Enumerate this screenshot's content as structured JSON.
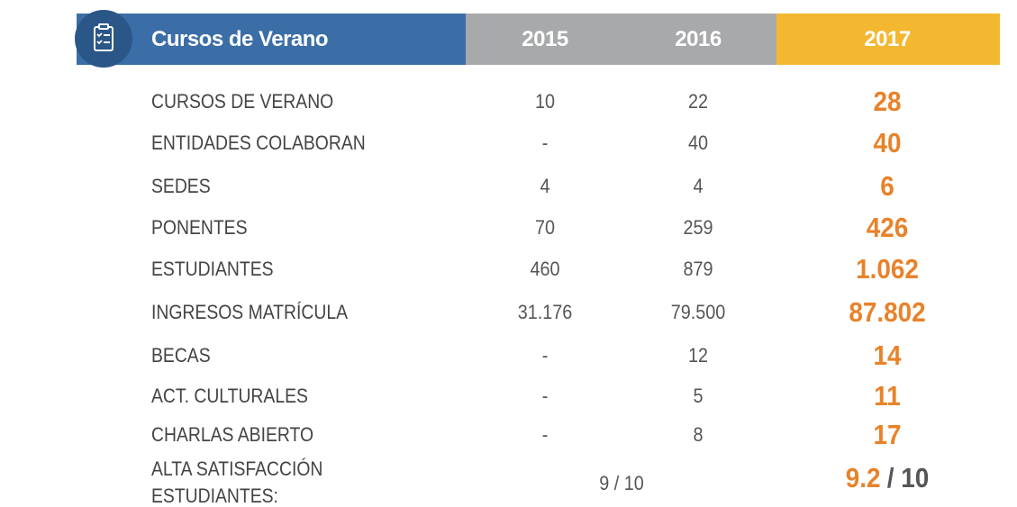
{
  "header": {
    "title": "Cursos de Verano",
    "years": [
      "2015",
      "2016",
      "2017"
    ]
  },
  "table": {
    "rows": [
      [
        "CURSOS DE VERANO",
        "10",
        "22",
        "28"
      ],
      [
        "ENTIDADES COLABORAN",
        "-",
        "40",
        "40"
      ],
      [
        "SEDES",
        "4",
        "4",
        "6"
      ],
      [
        "PONENTES",
        "70",
        "259",
        "426"
      ],
      [
        "ESTUDIANTES",
        "460",
        "879",
        "1.062"
      ],
      [
        "INGRESOS MATRÍCULA",
        "31.176",
        "79.500",
        "87.802"
      ],
      [
        "BECAS",
        "-",
        "12",
        "14"
      ],
      [
        "ACT. CULTURALES",
        "-",
        "5",
        "11"
      ],
      [
        "CHARLAS ABIERTO",
        "-",
        "8",
        "17"
      ]
    ],
    "satisfaction": {
      "label": [
        "ALTA SATISFACCIÓN",
        "ESTUDIANTES:"
      ],
      "previous": "9 / 10",
      "current": "9.2",
      "current_suffix": "/ 10"
    }
  }
}
